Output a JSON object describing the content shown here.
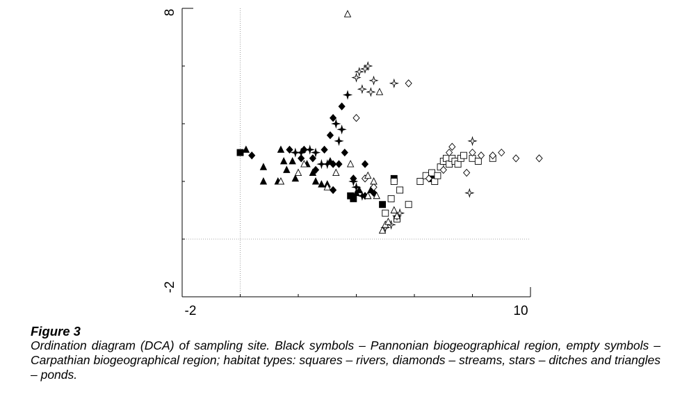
{
  "figure": {
    "title": "Figure 3",
    "caption": "Ordination diagram (DCA) of sampling site. Black symbols – Pannonian biogeographical region, empty symbols – Carpathian biogeographical region; habitat types: squares – rivers, diamonds – streams, stars – ditches and triangles – ponds."
  },
  "chart_data": {
    "type": "scatter",
    "title": "",
    "xlabel": "",
    "ylabel": "",
    "xlim": [
      -2,
      10
    ],
    "ylim": [
      -2,
      8
    ],
    "x_tick_labels": [
      "-2",
      "10"
    ],
    "y_tick_labels": [
      "8",
      "-2"
    ],
    "x_minor_ticks": [
      0,
      2,
      4,
      6,
      8
    ],
    "y_minor_ticks": [
      0,
      2,
      4,
      6
    ],
    "reference_lines": {
      "x": 0,
      "y": 0
    },
    "grid": false,
    "legend": "none",
    "colors": {
      "filled": "#000000",
      "empty": "#ffffff",
      "stroke": "#000000"
    },
    "series": [
      {
        "name": "",
        "marker": "square",
        "fill": "filled",
        "points": [
          [
            0,
            3
          ],
          [
            3.8,
            1.5
          ],
          [
            3.9,
            1.4
          ],
          [
            4.9,
            1.2
          ],
          [
            5.3,
            2.1
          ],
          [
            6.6,
            2.1
          ]
        ]
      },
      {
        "name": "",
        "marker": "diamond",
        "fill": "filled",
        "points": [
          [
            0.4,
            2.9
          ],
          [
            1.7,
            3.1
          ],
          [
            2.1,
            2.8
          ],
          [
            2.2,
            3.1
          ],
          [
            2.5,
            2.8
          ],
          [
            2.9,
            3.1
          ],
          [
            3.2,
            2.6
          ],
          [
            3.1,
            3.6
          ],
          [
            3.2,
            4.2
          ],
          [
            3.5,
            4.6
          ],
          [
            3.6,
            3.0
          ],
          [
            3.4,
            2.6
          ],
          [
            3.2,
            1.7
          ],
          [
            3.9,
            2.1
          ],
          [
            4.3,
            1.5
          ],
          [
            4.6,
            1.6
          ],
          [
            4.3,
            2.6
          ],
          [
            2.6,
            2.4
          ]
        ]
      },
      {
        "name": "",
        "marker": "star",
        "fill": "filled",
        "points": [
          [
            1.9,
            3.0
          ],
          [
            2.1,
            3.0
          ],
          [
            2.4,
            3.1
          ],
          [
            2.6,
            3.0
          ],
          [
            2.8,
            2.6
          ],
          [
            3.0,
            2.6
          ],
          [
            3.3,
            4.0
          ],
          [
            3.4,
            3.4
          ],
          [
            3.5,
            3.8
          ],
          [
            3.7,
            5.0
          ],
          [
            3.9,
            2.0
          ],
          [
            4.0,
            1.8
          ],
          [
            4.2,
            1.5
          ]
        ]
      },
      {
        "name": "",
        "marker": "triangle",
        "fill": "filled",
        "points": [
          [
            0.2,
            3.1
          ],
          [
            0.8,
            2.5
          ],
          [
            0.8,
            2.0
          ],
          [
            1.3,
            2.0
          ],
          [
            1.4,
            3.1
          ],
          [
            1.5,
            2.7
          ],
          [
            1.6,
            2.4
          ],
          [
            1.8,
            2.7
          ],
          [
            1.9,
            2.1
          ],
          [
            2.5,
            2.3
          ],
          [
            2.6,
            2.0
          ],
          [
            2.8,
            1.9
          ],
          [
            3.0,
            1.9
          ],
          [
            4.0,
            1.6
          ],
          [
            4.5,
            1.7
          ],
          [
            4.1,
            1.7
          ],
          [
            4.4,
            1.5
          ],
          [
            3.1,
            2.7
          ],
          [
            2.3,
            2.6
          ]
        ]
      },
      {
        "name": "",
        "marker": "square",
        "fill": "empty",
        "points": [
          [
            5.0,
            0.9
          ],
          [
            5.2,
            1.4
          ],
          [
            5.3,
            2.0
          ],
          [
            5.5,
            1.7
          ],
          [
            5.4,
            0.7
          ],
          [
            5.8,
            1.2
          ],
          [
            6.2,
            2.0
          ],
          [
            6.4,
            2.2
          ],
          [
            6.6,
            2.3
          ],
          [
            6.7,
            2.0
          ],
          [
            6.8,
            2.2
          ],
          [
            6.9,
            2.5
          ],
          [
            7.0,
            2.7
          ],
          [
            7.1,
            2.8
          ],
          [
            7.2,
            2.6
          ],
          [
            7.3,
            2.8
          ],
          [
            7.4,
            2.7
          ],
          [
            7.5,
            2.6
          ],
          [
            7.6,
            2.8
          ],
          [
            7.7,
            2.9
          ],
          [
            8.0,
            2.8
          ],
          [
            8.2,
            2.7
          ],
          [
            8.7,
            2.8
          ]
        ]
      },
      {
        "name": "",
        "marker": "diamond",
        "fill": "empty",
        "points": [
          [
            4.0,
            4.2
          ],
          [
            4.3,
            2.1
          ],
          [
            5.8,
            5.4
          ],
          [
            6.5,
            2.1
          ],
          [
            7.0,
            2.4
          ],
          [
            7.2,
            3.0
          ],
          [
            7.3,
            3.2
          ],
          [
            7.8,
            2.3
          ],
          [
            8.0,
            3.0
          ],
          [
            8.3,
            2.9
          ],
          [
            8.7,
            2.9
          ],
          [
            9.0,
            3.0
          ],
          [
            9.5,
            2.8
          ],
          [
            10.3,
            2.8
          ],
          [
            4.6,
            1.8
          ]
        ]
      },
      {
        "name": "",
        "marker": "star",
        "fill": "empty",
        "points": [
          [
            4.0,
            5.6
          ],
          [
            4.1,
            5.8
          ],
          [
            4.3,
            5.9
          ],
          [
            4.4,
            6.0
          ],
          [
            4.2,
            5.2
          ],
          [
            4.5,
            5.1
          ],
          [
            4.6,
            5.5
          ],
          [
            5.3,
            5.4
          ],
          [
            5.0,
            0.4
          ],
          [
            5.2,
            0.5
          ],
          [
            5.4,
            0.8
          ],
          [
            5.5,
            0.9
          ],
          [
            8.0,
            3.4
          ],
          [
            7.9,
            1.6
          ]
        ]
      },
      {
        "name": "",
        "marker": "triangle",
        "fill": "empty",
        "points": [
          [
            3.7,
            7.8
          ],
          [
            4.8,
            5.1
          ],
          [
            4.4,
            1.5
          ],
          [
            4.7,
            1.5
          ],
          [
            4.9,
            0.3
          ],
          [
            5.0,
            0.5
          ],
          [
            5.1,
            0.6
          ],
          [
            5.3,
            1.0
          ],
          [
            5.4,
            0.8
          ],
          [
            3.3,
            2.3
          ],
          [
            3.0,
            1.8
          ],
          [
            3.8,
            2.6
          ],
          [
            2.2,
            2.6
          ],
          [
            2.0,
            2.3
          ],
          [
            1.4,
            2.0
          ],
          [
            4.4,
            2.2
          ],
          [
            4.6,
            2.0
          ]
        ]
      }
    ]
  }
}
